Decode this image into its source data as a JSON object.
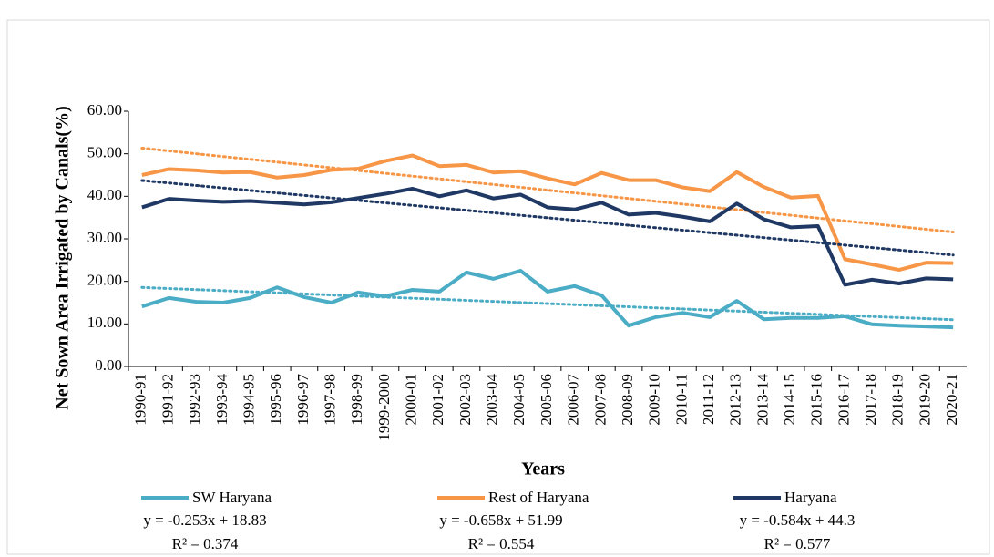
{
  "chart_data": {
    "type": "line",
    "y_label": "Net Sown Area Irrigated by Canals(%)",
    "x_label": "Years",
    "categories": [
      "1990-91",
      "1991-92",
      "1992-93",
      "1993-94",
      "1994-95",
      "1995-96",
      "1996-97",
      "1997-98",
      "1998-99",
      "1999-2000",
      "2000-01",
      "2001-02",
      "2002-03",
      "2003-04",
      "2004-05",
      "2005-06",
      "2006-07",
      "2007-08",
      "2008-09",
      "2009-10",
      "2010-11",
      "2011-12",
      "2012-13",
      "2013-14",
      "2014-15",
      "2015-16",
      "2016-17",
      "2017-18",
      "2018-19",
      "2019-20",
      "2020-21"
    ],
    "series": [
      {
        "name": "SW Haryana",
        "color": "#4bacc6",
        "values": [
          14.1,
          16.1,
          15.2,
          15.0,
          16.1,
          18.6,
          16.3,
          15.0,
          17.4,
          16.5,
          18.0,
          17.6,
          22.1,
          20.6,
          22.5,
          17.6,
          18.9,
          16.7,
          9.6,
          11.6,
          12.6,
          11.6,
          15.4,
          11.1,
          11.4,
          11.4,
          11.8,
          9.9,
          9.6,
          9.4,
          9.2
        ],
        "trendline": {
          "equation": "y = -0.253x + 18.83",
          "slope": -0.253,
          "intercept": 18.83,
          "r2": "R² = 0.374"
        }
      },
      {
        "name": "Rest of Haryana",
        "color": "#f79646",
        "values": [
          45.0,
          46.4,
          46.1,
          45.6,
          45.7,
          44.4,
          45.0,
          46.2,
          46.5,
          48.3,
          49.6,
          47.1,
          47.4,
          45.6,
          45.9,
          44.2,
          42.8,
          45.5,
          43.8,
          43.8,
          42.1,
          41.2,
          45.7,
          42.2,
          39.7,
          40.1,
          25.2,
          24.0,
          22.7,
          24.4,
          24.3
        ],
        "trendline": {
          "equation": "y = -0.658x + 51.99",
          "slope": -0.658,
          "intercept": 51.99,
          "r2": "R² = 0.554"
        }
      },
      {
        "name": "Haryana",
        "color": "#1f3864",
        "values": [
          37.4,
          39.4,
          39.0,
          38.7,
          38.9,
          38.5,
          38.1,
          38.6,
          39.6,
          40.6,
          41.8,
          40.0,
          41.4,
          39.5,
          40.4,
          37.4,
          36.9,
          38.5,
          35.7,
          36.1,
          35.2,
          34.1,
          38.3,
          34.6,
          32.7,
          33.0,
          19.2,
          20.4,
          19.5,
          20.7,
          20.5
        ],
        "trendline": {
          "equation": "y = -0.584x + 44.3",
          "slope": -0.584,
          "intercept": 44.3,
          "r2": "R² = 0.577"
        }
      }
    ],
    "ylim": [
      0,
      60
    ],
    "yticks": [
      {
        "value": 0,
        "label": "0.00"
      },
      {
        "value": 10,
        "label": "10.00"
      },
      {
        "value": 20,
        "label": "20.00"
      },
      {
        "value": 30,
        "label": "30.00"
      },
      {
        "value": 40,
        "label": "40.00"
      },
      {
        "value": 50,
        "label": "50.00"
      },
      {
        "value": 60,
        "label": "60.00"
      }
    ],
    "grid": false,
    "legend": "bottom"
  }
}
